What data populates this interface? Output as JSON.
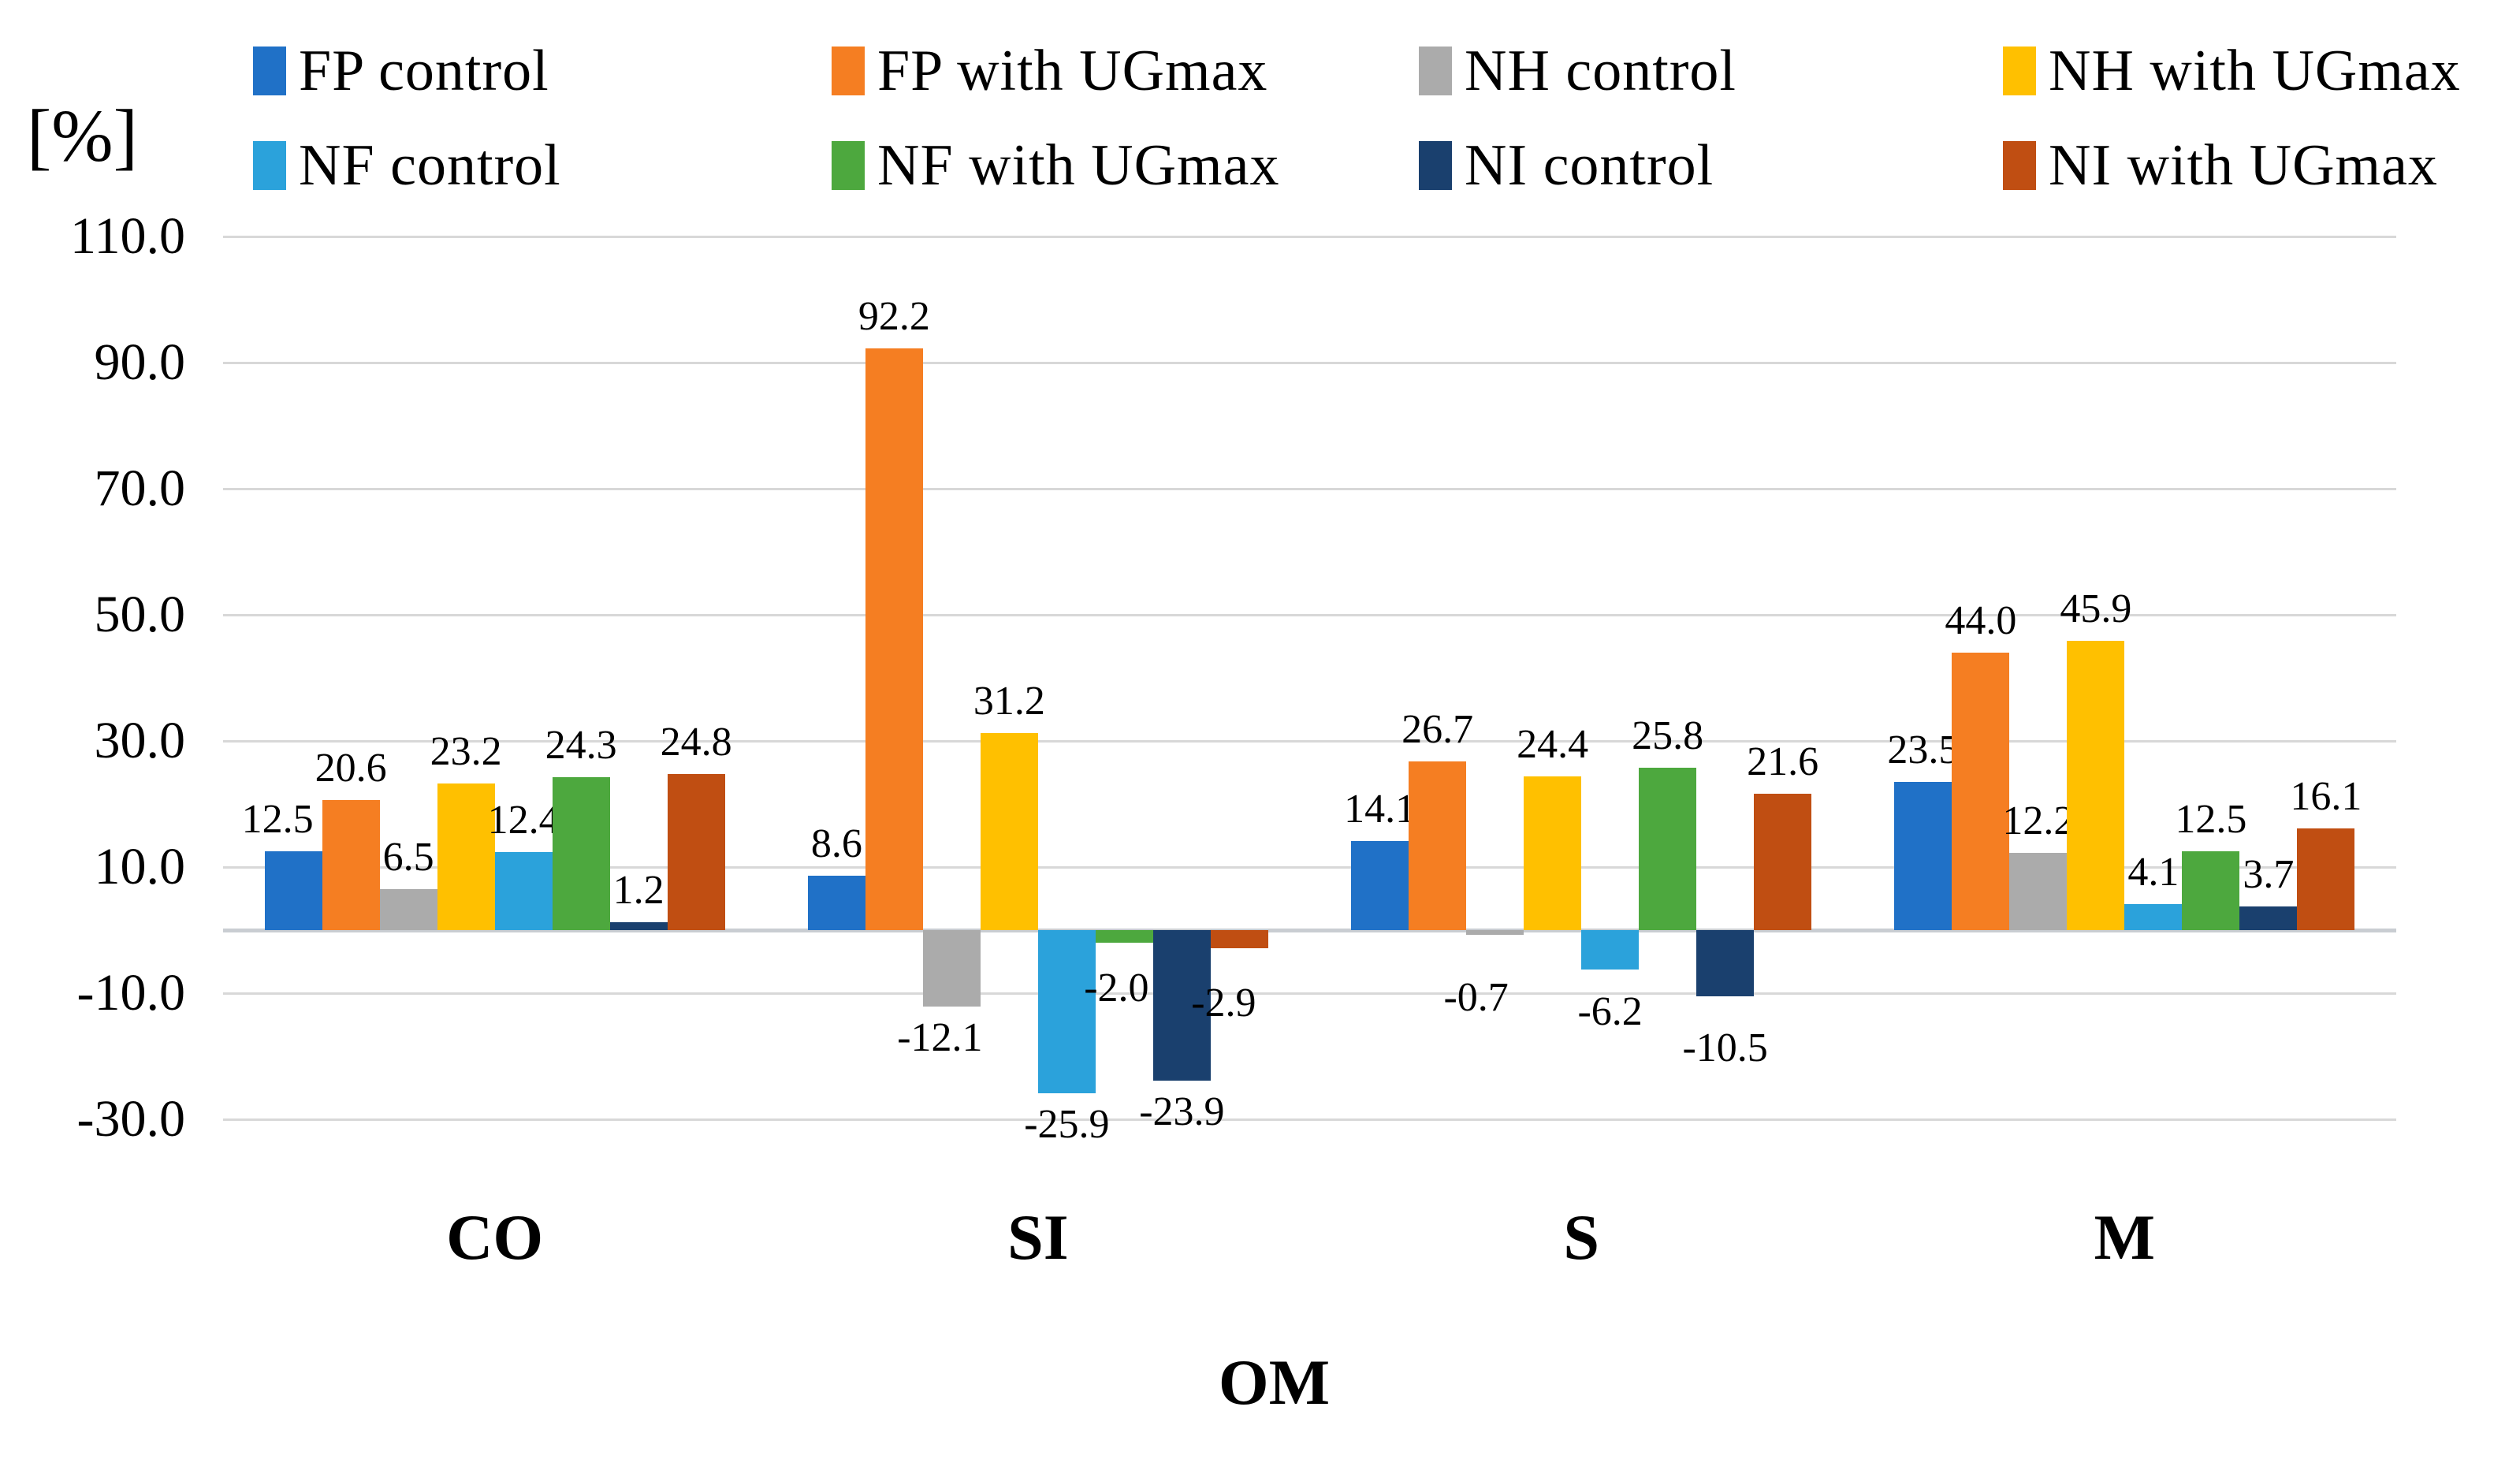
{
  "chart_data": {
    "type": "bar",
    "title": "",
    "ylabel": "[%]",
    "xlabel": "OM",
    "categories": [
      "CO",
      "SI",
      "S",
      "M"
    ],
    "series": [
      {
        "name": "FP control",
        "color": "#2071C7",
        "values": [
          12.5,
          8.6,
          14.1,
          23.5
        ]
      },
      {
        "name": "FP with UGmax",
        "color": "#F57E22",
        "values": [
          20.6,
          92.2,
          26.7,
          44.0
        ]
      },
      {
        "name": "NH control",
        "color": "#ABABAB",
        "values": [
          6.5,
          -12.1,
          -0.7,
          12.2
        ]
      },
      {
        "name": "NH with UGmax",
        "color": "#FFC000",
        "values": [
          23.2,
          31.2,
          24.4,
          45.9
        ]
      },
      {
        "name": "NF control",
        "color": "#2BA2DB",
        "values": [
          12.4,
          -25.9,
          -6.2,
          4.1
        ]
      },
      {
        "name": "NF with UGmax",
        "color": "#4DA83E",
        "values": [
          24.3,
          -2.0,
          25.8,
          12.5
        ]
      },
      {
        "name": "NI control",
        "color": "#1A406E",
        "values": [
          1.2,
          -23.9,
          -10.5,
          3.7
        ]
      },
      {
        "name": "NI with UGmax",
        "color": "#C04E12",
        "values": [
          24.8,
          -2.9,
          21.6,
          16.1
        ]
      }
    ],
    "y_ticks": [
      110.0,
      90.0,
      70.0,
      50.0,
      30.0,
      10.0,
      -10.0,
      -30.0
    ],
    "ylim": [
      -30,
      110
    ],
    "grid": true,
    "legend_position": "top",
    "value_label_decimals": 1
  },
  "colors": {
    "gridline": "#D8D8D8",
    "axis_line": "#C9CDD2",
    "text": "#000000",
    "background": "#FFFFFF"
  }
}
